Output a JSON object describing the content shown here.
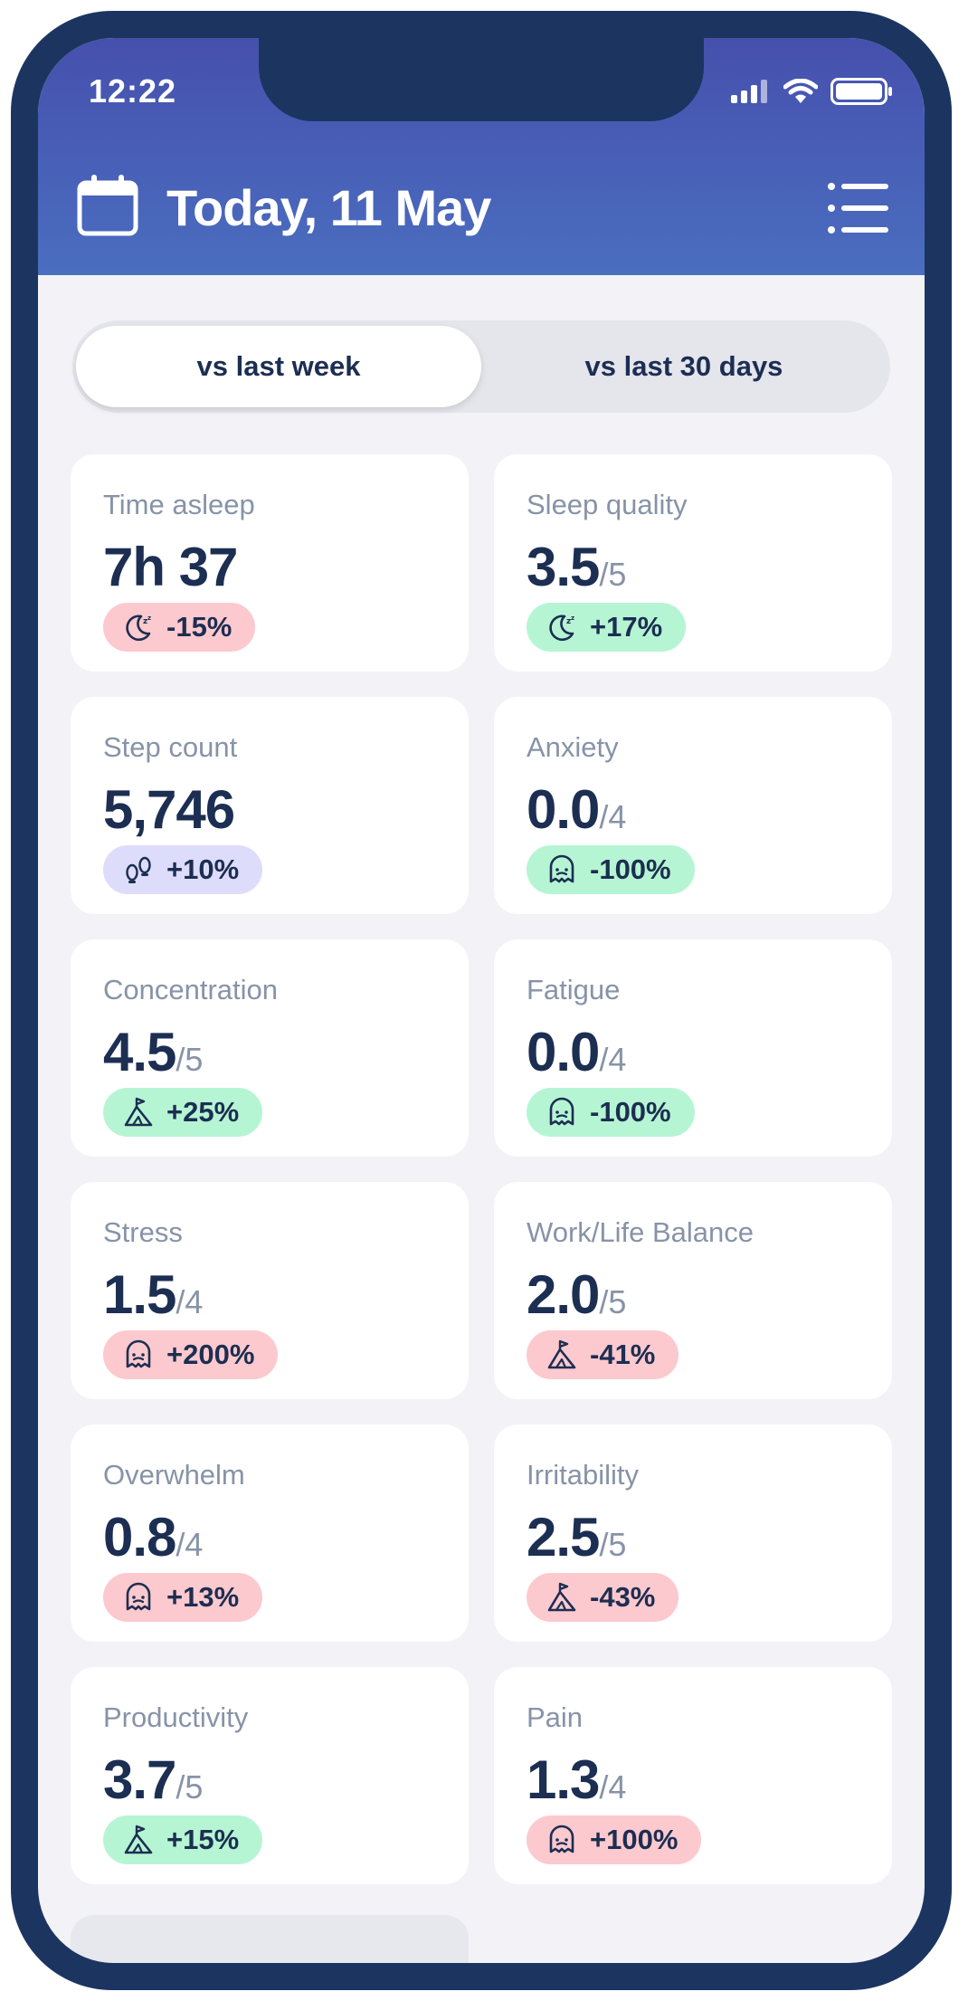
{
  "status_bar": {
    "time": "12:22"
  },
  "header": {
    "title": "Today, 11 May"
  },
  "comparison_tabs": [
    {
      "label": "vs last week",
      "selected": true
    },
    {
      "label": "vs last 30 days",
      "selected": false
    }
  ],
  "cards": [
    {
      "label": "Time asleep",
      "value": "7h 37",
      "denom": "",
      "change": "-15%",
      "tone": "red",
      "icon": "moon-icon"
    },
    {
      "label": "Sleep quality",
      "value": "3.5",
      "denom": "/5",
      "change": "+17%",
      "tone": "green",
      "icon": "moon-icon"
    },
    {
      "label": "Step count",
      "value": "5,746",
      "denom": "",
      "change": "+10%",
      "tone": "purple",
      "icon": "footprints-icon"
    },
    {
      "label": "Anxiety",
      "value": "0.0",
      "denom": "/4",
      "change": "-100%",
      "tone": "green",
      "icon": "ghost-icon"
    },
    {
      "label": "Concentration",
      "value": "4.5",
      "denom": "/5",
      "change": "+25%",
      "tone": "green",
      "icon": "mountain-flag-icon"
    },
    {
      "label": "Fatigue",
      "value": "0.0",
      "denom": "/4",
      "change": "-100%",
      "tone": "green",
      "icon": "ghost-icon"
    },
    {
      "label": "Stress",
      "value": "1.5",
      "denom": "/4",
      "change": "+200%",
      "tone": "red",
      "icon": "ghost-icon"
    },
    {
      "label": "Work/Life Balance",
      "value": "2.0",
      "denom": "/5",
      "change": "-41%",
      "tone": "red",
      "icon": "mountain-flag-icon"
    },
    {
      "label": "Overwhelm",
      "value": "0.8",
      "denom": "/4",
      "change": "+13%",
      "tone": "red",
      "icon": "ghost-icon"
    },
    {
      "label": "Irritability",
      "value": "2.5",
      "denom": "/5",
      "change": "-43%",
      "tone": "red",
      "icon": "mountain-flag-icon"
    },
    {
      "label": "Productivity",
      "value": "3.7",
      "denom": "/5",
      "change": "+15%",
      "tone": "green",
      "icon": "mountain-flag-icon"
    },
    {
      "label": "Pain",
      "value": "1.3",
      "denom": "/4",
      "change": "+100%",
      "tone": "red",
      "icon": "ghost-icon"
    }
  ],
  "colors": {
    "frame": "#1c3560",
    "header_top": "#4650ad",
    "header_bottom": "#4a6ec0",
    "badge_red": "#fcc9ce",
    "badge_green": "#b6f5d3",
    "badge_purple": "#dedcfb",
    "text_dark": "#1c2e52",
    "text_muted": "#8793a7"
  }
}
